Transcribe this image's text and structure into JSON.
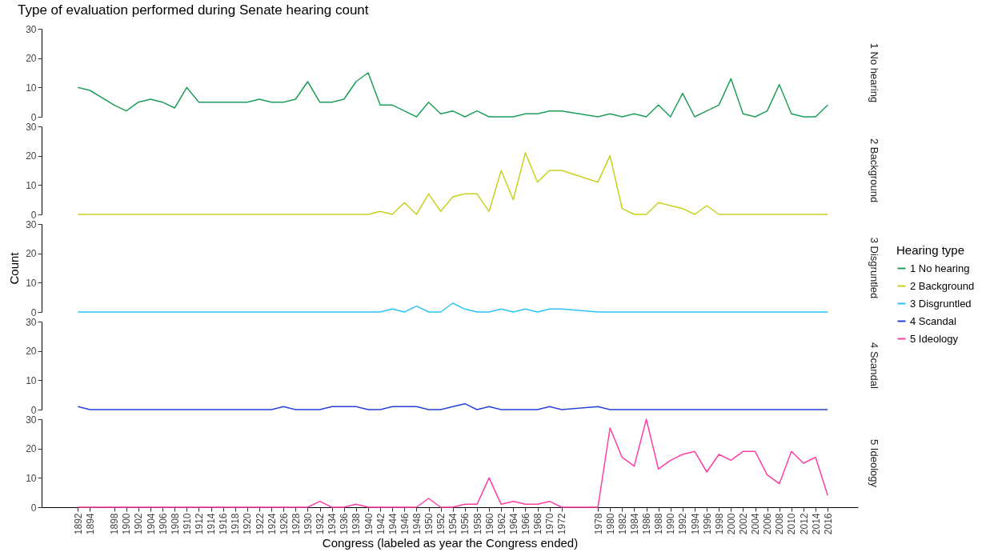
{
  "chart_data": [
    {
      "type": "line",
      "title": "Type of evaluation performed during Senate hearing count",
      "legend": "right",
      "legend_title": "Hearing type",
      "tick_labels": "y",
      "ylim": [
        0,
        30
      ],
      "yticks": [
        0,
        10,
        20,
        30
      ],
      "grid": false,
      "marker": "none",
      "line_style": "solid",
      "x": [
        1892,
        1894,
        1898,
        1900,
        1902,
        1904,
        1906,
        1908,
        1910,
        1912,
        1914,
        1916,
        1918,
        1920,
        1922,
        1924,
        1926,
        1928,
        1930,
        1932,
        1934,
        1936,
        1938,
        1940,
        1942,
        1944,
        1946,
        1948,
        1950,
        1952,
        1954,
        1956,
        1958,
        1960,
        1962,
        1964,
        1966,
        1968,
        1970,
        1972,
        1978,
        1980,
        1982,
        1984,
        1986,
        1988,
        1990,
        1992,
        1994,
        1996,
        1998,
        2000,
        2002,
        2004,
        2006,
        2008,
        2010,
        2012,
        2014,
        2016
      ],
      "series": [
        {
          "name": "1 No hearing",
          "color": "#1f9e5a",
          "values": [
            10,
            9,
            4,
            2,
            5,
            6,
            5,
            3,
            10,
            5,
            5,
            5,
            5,
            5,
            6,
            5,
            5,
            6,
            12,
            5,
            5,
            6,
            12,
            15,
            4,
            4,
            2,
            0,
            5,
            1,
            2,
            0,
            2,
            0,
            0,
            0,
            1,
            1,
            2,
            2,
            0,
            1,
            0,
            1,
            0,
            4,
            0,
            8,
            0,
            2,
            4,
            13,
            1,
            0,
            2,
            11,
            1,
            0,
            0,
            4
          ]
        }
      ]
    },
    {
      "type": "line",
      "tick_labels": "y",
      "ylim": [
        0,
        30
      ],
      "yticks": [
        0,
        10,
        20,
        30
      ],
      "grid": false,
      "marker": "none",
      "line_style": "solid",
      "x": [
        1892,
        1894,
        1898,
        1900,
        1902,
        1904,
        1906,
        1908,
        1910,
        1912,
        1914,
        1916,
        1918,
        1920,
        1922,
        1924,
        1926,
        1928,
        1930,
        1932,
        1934,
        1936,
        1938,
        1940,
        1942,
        1944,
        1946,
        1948,
        1950,
        1952,
        1954,
        1956,
        1958,
        1960,
        1962,
        1964,
        1966,
        1968,
        1970,
        1972,
        1978,
        1980,
        1982,
        1984,
        1986,
        1988,
        1990,
        1992,
        1994,
        1996,
        1998,
        2000,
        2002,
        2004,
        2006,
        2008,
        2010,
        2012,
        2014,
        2016
      ],
      "series": [
        {
          "name": "2 Background",
          "color": "#c9d11f",
          "values": [
            0,
            0,
            0,
            0,
            0,
            0,
            0,
            0,
            0,
            0,
            0,
            0,
            0,
            0,
            0,
            0,
            0,
            0,
            0,
            0,
            0,
            0,
            0,
            0,
            1,
            0,
            4,
            0,
            7,
            1,
            6,
            7,
            7,
            1,
            15,
            5,
            21,
            11,
            15,
            15,
            11,
            20,
            2,
            0,
            0,
            4,
            3,
            2,
            0,
            3,
            0,
            0,
            0,
            0,
            0,
            0,
            0,
            0,
            0,
            0
          ]
        }
      ]
    },
    {
      "type": "line",
      "ylabel": "Count",
      "tick_labels": "y",
      "ylim": [
        0,
        30
      ],
      "yticks": [
        0,
        10,
        20,
        30
      ],
      "grid": false,
      "marker": "none",
      "line_style": "solid",
      "x": [
        1892,
        1894,
        1898,
        1900,
        1902,
        1904,
        1906,
        1908,
        1910,
        1912,
        1914,
        1916,
        1918,
        1920,
        1922,
        1924,
        1926,
        1928,
        1930,
        1932,
        1934,
        1936,
        1938,
        1940,
        1942,
        1944,
        1946,
        1948,
        1950,
        1952,
        1954,
        1956,
        1958,
        1960,
        1962,
        1964,
        1966,
        1968,
        1970,
        1972,
        1978,
        1980,
        1982,
        1984,
        1986,
        1988,
        1990,
        1992,
        1994,
        1996,
        1998,
        2000,
        2002,
        2004,
        2006,
        2008,
        2010,
        2012,
        2014,
        2016
      ],
      "series": [
        {
          "name": "3 Disgruntled",
          "color": "#2ec4f5",
          "values": [
            0,
            0,
            0,
            0,
            0,
            0,
            0,
            0,
            0,
            0,
            0,
            0,
            0,
            0,
            0,
            0,
            0,
            0,
            0,
            0,
            0,
            0,
            0,
            0,
            0,
            1,
            0,
            2,
            0,
            0,
            3,
            1,
            0,
            0,
            1,
            0,
            1,
            0,
            1,
            1,
            0,
            0,
            0,
            0,
            0,
            0,
            0,
            0,
            0,
            0,
            0,
            0,
            0,
            0,
            0,
            0,
            0,
            0,
            0,
            0
          ]
        }
      ]
    },
    {
      "type": "line",
      "tick_labels": "y",
      "ylim": [
        0,
        30
      ],
      "yticks": [
        0,
        10,
        20,
        30
      ],
      "grid": false,
      "marker": "none",
      "line_style": "solid",
      "x": [
        1892,
        1894,
        1898,
        1900,
        1902,
        1904,
        1906,
        1908,
        1910,
        1912,
        1914,
        1916,
        1918,
        1920,
        1922,
        1924,
        1926,
        1928,
        1930,
        1932,
        1934,
        1936,
        1938,
        1940,
        1942,
        1944,
        1946,
        1948,
        1950,
        1952,
        1954,
        1956,
        1958,
        1960,
        1962,
        1964,
        1966,
        1968,
        1970,
        1972,
        1978,
        1980,
        1982,
        1984,
        1986,
        1988,
        1990,
        1992,
        1994,
        1996,
        1998,
        2000,
        2002,
        2004,
        2006,
        2008,
        2010,
        2012,
        2014,
        2016
      ],
      "series": [
        {
          "name": "4 Scandal",
          "color": "#2440d8",
          "values": [
            1,
            0,
            0,
            0,
            0,
            0,
            0,
            0,
            0,
            0,
            0,
            0,
            0,
            0,
            0,
            0,
            1,
            0,
            0,
            0,
            1,
            1,
            1,
            0,
            0,
            1,
            1,
            1,
            0,
            0,
            1,
            2,
            0,
            1,
            0,
            0,
            0,
            0,
            1,
            0,
            1,
            0,
            0,
            0,
            0,
            0,
            0,
            0,
            0,
            0,
            0,
            0,
            0,
            0,
            0,
            0,
            0,
            0,
            0,
            0
          ]
        }
      ]
    },
    {
      "type": "line",
      "xlabel": "Congress (labeled as year the Congress ended)",
      "xlim": [
        1886,
        2021
      ],
      "xticks": [
        1892,
        1894,
        1898,
        1900,
        1902,
        1904,
        1906,
        1908,
        1910,
        1912,
        1914,
        1916,
        1918,
        1920,
        1922,
        1924,
        1926,
        1928,
        1930,
        1932,
        1934,
        1936,
        1938,
        1940,
        1942,
        1944,
        1946,
        1948,
        1950,
        1952,
        1954,
        1956,
        1958,
        1960,
        1962,
        1964,
        1966,
        1968,
        1970,
        1972,
        1978,
        1980,
        1982,
        1984,
        1986,
        1988,
        1990,
        1992,
        1994,
        1996,
        1998,
        2000,
        2002,
        2004,
        2006,
        2008,
        2010,
        2012,
        2014,
        2016
      ],
      "ylim": [
        0,
        30
      ],
      "yticks": [
        0,
        10,
        20,
        30
      ],
      "grid": false,
      "marker": "none",
      "line_style": "solid",
      "x": [
        1892,
        1894,
        1898,
        1900,
        1902,
        1904,
        1906,
        1908,
        1910,
        1912,
        1914,
        1916,
        1918,
        1920,
        1922,
        1924,
        1926,
        1928,
        1930,
        1932,
        1934,
        1936,
        1938,
        1940,
        1942,
        1944,
        1946,
        1948,
        1950,
        1952,
        1954,
        1956,
        1958,
        1960,
        1962,
        1964,
        1966,
        1968,
        1970,
        1972,
        1978,
        1980,
        1982,
        1984,
        1986,
        1988,
        1990,
        1992,
        1994,
        1996,
        1998,
        2000,
        2002,
        2004,
        2006,
        2008,
        2010,
        2012,
        2014,
        2016
      ],
      "series": [
        {
          "name": "5 Ideology",
          "color": "#ff3fa3",
          "values": [
            0,
            0,
            0,
            0,
            0,
            0,
            0,
            0,
            0,
            0,
            0,
            0,
            0,
            0,
            0,
            0,
            0,
            0,
            0,
            2,
            0,
            0,
            1,
            0,
            0,
            0,
            0,
            0,
            3,
            0,
            0,
            1,
            1,
            10,
            1,
            2,
            1,
            1,
            2,
            0,
            0,
            27,
            17,
            14,
            30,
            13,
            16,
            18,
            19,
            12,
            18,
            16,
            19,
            19,
            11,
            8,
            19,
            15,
            17,
            4
          ]
        }
      ]
    }
  ]
}
